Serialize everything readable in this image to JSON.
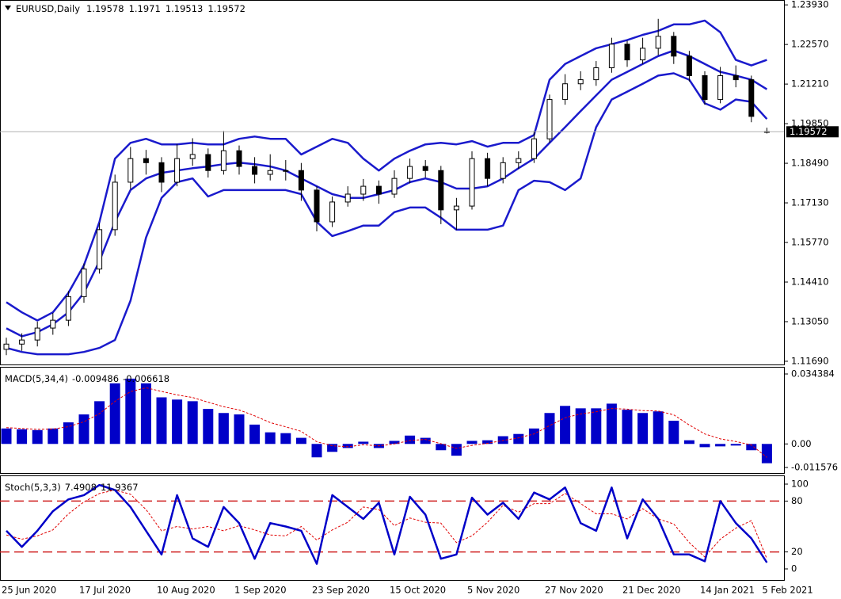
{
  "chart_data": [
    {
      "type": "candlestick",
      "title": "EURUSD,Daily",
      "open": [
        1.121,
        1.1228,
        1.1242,
        1.1283,
        1.131,
        1.1391,
        1.1486,
        1.1621,
        1.1784,
        1.1865,
        1.1851,
        1.1784,
        1.1865,
        1.1879,
        1.1824,
        1.1892,
        1.1838,
        1.1811,
        1.1824,
        1.1824,
        1.1757,
        1.1648,
        1.1716,
        1.1743,
        1.177,
        1.1743,
        1.1797,
        1.1838,
        1.1824,
        1.1689,
        1.1702,
        1.1865,
        1.1797,
        1.1851,
        1.1865,
        1.1933,
        1.2068,
        1.2122,
        1.2136,
        1.2177,
        1.2258,
        1.2204,
        1.2244,
        1.2285,
        1.2217,
        1.215,
        1.2068,
        1.215,
        1.2136,
        1.19578
      ],
      "high": [
        1.125,
        1.1265,
        1.1305,
        1.1335,
        1.141,
        1.1505,
        1.1645,
        1.181,
        1.1905,
        1.1895,
        1.187,
        1.1915,
        1.1935,
        1.19,
        1.196,
        1.191,
        1.187,
        1.188,
        1.186,
        1.185,
        1.177,
        1.1735,
        1.177,
        1.1795,
        1.179,
        1.1825,
        1.1865,
        1.186,
        1.184,
        1.173,
        1.189,
        1.1885,
        1.187,
        1.189,
        1.196,
        1.2085,
        1.2155,
        1.2165,
        1.22,
        1.228,
        1.227,
        1.228,
        1.2345,
        1.23,
        1.2235,
        1.2165,
        1.218,
        1.2185,
        1.215,
        1.1971
      ],
      "low": [
        1.119,
        1.1205,
        1.122,
        1.126,
        1.129,
        1.137,
        1.147,
        1.16,
        1.176,
        1.181,
        1.175,
        1.177,
        1.184,
        1.18,
        1.181,
        1.181,
        1.178,
        1.179,
        1.179,
        1.172,
        1.1615,
        1.163,
        1.17,
        1.172,
        1.171,
        1.173,
        1.178,
        1.18,
        1.164,
        1.162,
        1.169,
        1.177,
        1.178,
        1.183,
        1.185,
        1.192,
        1.205,
        1.21,
        1.2115,
        1.216,
        1.218,
        1.219,
        1.222,
        1.219,
        1.213,
        1.205,
        1.2055,
        1.211,
        1.199,
        1.19513
      ],
      "close": [
        1.1228,
        1.1242,
        1.1283,
        1.131,
        1.1391,
        1.1486,
        1.1621,
        1.1784,
        1.1865,
        1.1851,
        1.1784,
        1.1865,
        1.1879,
        1.1824,
        1.1892,
        1.1838,
        1.1811,
        1.1824,
        1.1824,
        1.1757,
        1.1648,
        1.1716,
        1.1743,
        1.177,
        1.1743,
        1.1797,
        1.1838,
        1.1824,
        1.1689,
        1.1702,
        1.1865,
        1.1797,
        1.1851,
        1.1865,
        1.1933,
        1.2068,
        1.2122,
        1.2136,
        1.2177,
        1.2258,
        1.2204,
        1.2244,
        1.2285,
        1.2217,
        1.215,
        1.2068,
        1.215,
        1.2136,
        1.201,
        1.19572
      ],
      "bands": {
        "color": "#1a1acc",
        "upper": [
          1.1372,
          1.1337,
          1.1309,
          1.1337,
          1.1404,
          1.1499,
          1.1648,
          1.1865,
          1.1919,
          1.1933,
          1.1914,
          1.1914,
          1.1919,
          1.1914,
          1.1914,
          1.1933,
          1.1941,
          1.1933,
          1.1933,
          1.1879,
          1.1906,
          1.1933,
          1.1919,
          1.1865,
          1.1824,
          1.1865,
          1.1892,
          1.1914,
          1.1919,
          1.1914,
          1.1925,
          1.1906,
          1.1919,
          1.1919,
          1.1946,
          1.2136,
          1.219,
          1.2217,
          1.2244,
          1.2258,
          1.2272,
          1.229,
          1.2304,
          1.2326,
          1.2326,
          1.2339,
          1.2299,
          1.2204,
          1.2185,
          1.2204
        ],
        "middle": [
          1.1282,
          1.1255,
          1.1269,
          1.1296,
          1.1337,
          1.1404,
          1.1513,
          1.1648,
          1.1757,
          1.1797,
          1.1816,
          1.1824,
          1.1832,
          1.1838,
          1.1846,
          1.1851,
          1.1846,
          1.1838,
          1.1824,
          1.1797,
          1.177,
          1.1743,
          1.173,
          1.173,
          1.1743,
          1.1757,
          1.1784,
          1.1797,
          1.1784,
          1.1762,
          1.1762,
          1.177,
          1.1797,
          1.1832,
          1.1865,
          1.1919,
          1.1973,
          1.2028,
          1.2082,
          1.2136,
          1.2163,
          1.219,
          1.2217,
          1.2236,
          1.2217,
          1.219,
          1.2163,
          1.215,
          1.2136,
          1.2103
        ],
        "lower": [
          1.1215,
          1.1201,
          1.1193,
          1.1193,
          1.1193,
          1.1201,
          1.1215,
          1.1242,
          1.1377,
          1.1594,
          1.173,
          1.1784,
          1.1797,
          1.1735,
          1.1757,
          1.1757,
          1.1757,
          1.1757,
          1.1757,
          1.1743,
          1.1648,
          1.1599,
          1.1616,
          1.1635,
          1.1635,
          1.1681,
          1.1697,
          1.1697,
          1.1662,
          1.1621,
          1.1621,
          1.1621,
          1.1635,
          1.1757,
          1.1789,
          1.1784,
          1.1757,
          1.1797,
          1.1973,
          1.2068,
          1.2095,
          1.2122,
          1.215,
          1.2158,
          1.2136,
          1.2055,
          1.2033,
          1.2068,
          1.206,
          1.2001
        ]
      },
      "ylim": [
        1.1158,
        1.2407
      ],
      "yticks": [
        {
          "value": 1.2393,
          "label": "1.23930"
        },
        {
          "value": 1.2257,
          "label": "1.22570"
        },
        {
          "value": 1.2121,
          "label": "1.21210"
        },
        {
          "value": 1.1985,
          "label": "1.19850"
        },
        {
          "value": 1.1849,
          "label": "1.18490"
        },
        {
          "value": 1.1713,
          "label": "1.17130"
        },
        {
          "value": 1.1577,
          "label": "1.15770"
        },
        {
          "value": 1.1441,
          "label": "1.14410"
        },
        {
          "value": 1.1305,
          "label": "1.13050"
        },
        {
          "value": 1.1169,
          "label": "1.11690"
        }
      ]
    },
    {
      "type": "bar",
      "title": "MACD(5,34,4)",
      "color": "#0000c8",
      "signal_color": "#e00000",
      "values": [
        0.0076,
        0.0072,
        0.0068,
        0.0076,
        0.0106,
        0.0145,
        0.021,
        0.0298,
        0.0321,
        0.0298,
        0.0229,
        0.0218,
        0.021,
        0.0172,
        0.0152,
        0.0145,
        0.0095,
        0.0057,
        0.0053,
        0.003,
        -0.0066,
        -0.0039,
        -0.002,
        0.0011,
        -0.002,
        0.0015,
        0.0041,
        0.003,
        -0.0031,
        -0.0058,
        0.0015,
        0.0018,
        0.0038,
        0.0049,
        0.0076,
        0.0152,
        0.0187,
        0.0175,
        0.0175,
        0.0198,
        0.0168,
        0.0152,
        0.016,
        0.0114,
        0.0018,
        -0.0016,
        -0.0012,
        -0.0008,
        -0.0031,
        -0.009486
      ],
      "signal": [
        0.008,
        0.0076,
        0.0072,
        0.0073,
        0.0085,
        0.0109,
        0.0149,
        0.0209,
        0.0257,
        0.0276,
        0.0258,
        0.0241,
        0.0228,
        0.0205,
        0.0183,
        0.0167,
        0.0138,
        0.0105,
        0.0084,
        0.0062,
        0.0011,
        -0.0009,
        -0.0014,
        -0.0004,
        -0.001,
        0.0,
        0.0017,
        0.0022,
        0.0001,
        -0.0022,
        -0.0007,
        0.0003,
        0.0017,
        0.003,
        0.0049,
        0.009,
        0.0129,
        0.0147,
        0.0158,
        0.0174,
        0.0171,
        0.0164,
        0.0162,
        0.0143,
        0.0093,
        0.0049,
        0.0025,
        0.0012,
        -0.0005,
        -0.006618
      ],
      "ylim": [
        -0.011576,
        0.034384
      ],
      "yticks": [
        0.034384,
        {
          "value": 0,
          "label": "0.00"
        },
        -0.011576
      ]
    },
    {
      "type": "line",
      "title": "Stoch(5,3,3)",
      "color": "#0000c8",
      "signal_color": "#e00000",
      "level_color": "#d02020",
      "main": [
        45,
        26,
        45,
        68,
        82,
        87,
        99,
        93,
        73,
        45,
        17,
        87,
        36,
        26,
        73,
        54,
        12,
        54,
        50,
        45,
        6,
        87,
        73,
        59,
        78,
        17,
        85,
        64,
        12,
        17,
        84,
        64,
        78,
        59,
        90,
        82,
        96,
        54,
        45,
        96,
        36,
        82,
        59,
        17,
        17,
        9,
        80,
        54,
        36,
        7.4908
      ],
      "signal": [
        40,
        35,
        39,
        46,
        65,
        79,
        89,
        93,
        88,
        70,
        45,
        50,
        47,
        50,
        45,
        51,
        46,
        40,
        39,
        50,
        34,
        46,
        55,
        73,
        70,
        51,
        60,
        55,
        54,
        31,
        39,
        55,
        75,
        67,
        77,
        77,
        89,
        77,
        65,
        65,
        59,
        71,
        59,
        53,
        31,
        14,
        35,
        48,
        57,
        11.9367
      ],
      "level_lines": [
        80,
        20
      ],
      "ylim": [
        0,
        100
      ],
      "yticks": [
        100,
        80,
        20,
        0
      ],
      "categories": [
        "25 Jun 2020",
        null,
        null,
        null,
        null,
        "17 Jul 2020",
        null,
        null,
        null,
        null,
        "10 Aug 2020",
        null,
        null,
        null,
        null,
        "1 Sep 2020",
        null,
        null,
        null,
        null,
        "23 Sep 2020",
        null,
        null,
        null,
        null,
        "15 Oct 2020",
        null,
        null,
        null,
        null,
        "5 Nov 2020",
        null,
        null,
        null,
        null,
        "27 Nov 2020",
        null,
        null,
        null,
        null,
        "21 Dec 2020",
        null,
        null,
        null,
        null,
        "14 Jan 2021",
        null,
        null,
        null,
        "5 Feb 2021"
      ]
    }
  ]
}
